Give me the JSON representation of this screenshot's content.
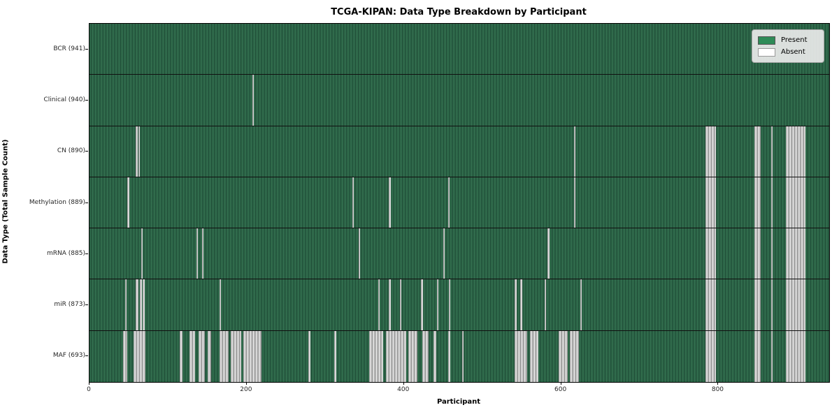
{
  "title": "TCGA-KIPAN: Data Type Breakdown by Participant",
  "xlabel": "Participant",
  "ylabel": "Data Type (Total Sample Count)",
  "legend": {
    "present_label": "Present",
    "absent_label": "Absent"
  },
  "colors": {
    "present": "#2e8b57",
    "present_dark": "#1e4c36",
    "absent": "#ffffff",
    "absent_edge": "#8f8f8f",
    "frame": "#000000",
    "legend_bg": "#eaeaea"
  },
  "chart_data": {
    "type": "heatmap",
    "title": "TCGA-KIPAN: Data Type Breakdown by Participant",
    "xlabel": "Participant",
    "ylabel": "Data Type (Total Sample Count)",
    "x_range": [
      0,
      941
    ],
    "x_ticks": [
      0,
      200,
      400,
      600,
      800
    ],
    "grid": false,
    "legend_position": "upper right",
    "legend_entries": [
      "Present",
      "Absent"
    ],
    "cell_states": {
      "present": 1,
      "absent": 0
    },
    "rows": [
      {
        "label": "BCR (941)",
        "data_type": "BCR",
        "total_samples": 941,
        "absent_ranges": []
      },
      {
        "label": "Clinical (940)",
        "data_type": "Clinical",
        "total_samples": 940,
        "absent_ranges": [
          [
            207,
            209
          ]
        ]
      },
      {
        "label": "CN (890)",
        "data_type": "CN",
        "total_samples": 890,
        "absent_ranges": [
          [
            59,
            61
          ],
          [
            62,
            64
          ],
          [
            616,
            618
          ],
          [
            784,
            797
          ],
          [
            846,
            854
          ],
          [
            867,
            869
          ],
          [
            886,
            911
          ]
        ]
      },
      {
        "label": "Methylation (889)",
        "data_type": "Methylation",
        "total_samples": 889,
        "absent_ranges": [
          [
            48,
            51
          ],
          [
            334,
            336
          ],
          [
            381,
            383
          ],
          [
            456,
            458
          ],
          [
            616,
            618
          ],
          [
            784,
            797
          ],
          [
            846,
            854
          ],
          [
            867,
            869
          ],
          [
            886,
            911
          ]
        ]
      },
      {
        "label": "mRNA (885)",
        "data_type": "mRNA",
        "total_samples": 885,
        "absent_ranges": [
          [
            66,
            68
          ],
          [
            136,
            138
          ],
          [
            143,
            145
          ],
          [
            342,
            344
          ],
          [
            450,
            452
          ],
          [
            583,
            585
          ],
          [
            784,
            797
          ],
          [
            846,
            854
          ],
          [
            867,
            869
          ],
          [
            886,
            911
          ]
        ]
      },
      {
        "label": "miR (873)",
        "data_type": "miR",
        "total_samples": 873,
        "absent_ranges": [
          [
            45,
            47
          ],
          [
            59,
            62
          ],
          [
            64,
            67
          ],
          [
            68,
            70
          ],
          [
            165,
            167
          ],
          [
            367,
            369
          ],
          [
            381,
            383
          ],
          [
            395,
            397
          ],
          [
            422,
            424
          ],
          [
            442,
            444
          ],
          [
            457,
            459
          ],
          [
            541,
            543
          ],
          [
            548,
            551
          ],
          [
            579,
            581
          ],
          [
            624,
            626
          ],
          [
            784,
            797
          ],
          [
            846,
            854
          ],
          [
            867,
            869
          ],
          [
            886,
            911
          ]
        ]
      },
      {
        "label": "MAF (693)",
        "data_type": "MAF",
        "total_samples": 693,
        "absent_ranges": [
          [
            43,
            48
          ],
          [
            56,
            71
          ],
          [
            115,
            118
          ],
          [
            127,
            134
          ],
          [
            139,
            147
          ],
          [
            150,
            155
          ],
          [
            165,
            177
          ],
          [
            180,
            193
          ],
          [
            196,
            219
          ],
          [
            278,
            281
          ],
          [
            311,
            314
          ],
          [
            356,
            374
          ],
          [
            377,
            403
          ],
          [
            406,
            417
          ],
          [
            423,
            431
          ],
          [
            438,
            441
          ],
          [
            456,
            459
          ],
          [
            474,
            476
          ],
          [
            541,
            557
          ],
          [
            560,
            571
          ],
          [
            597,
            608
          ],
          [
            611,
            623
          ],
          [
            784,
            797
          ],
          [
            846,
            854
          ],
          [
            867,
            869
          ],
          [
            886,
            911
          ]
        ]
      }
    ]
  }
}
